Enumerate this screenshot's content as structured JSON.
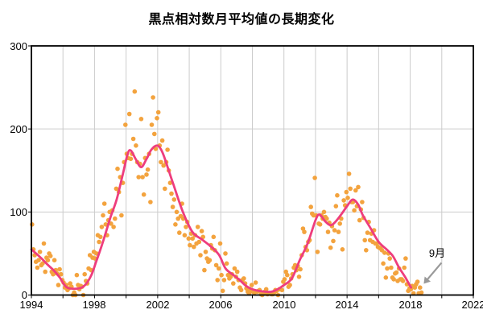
{
  "chart_data": {
    "type": "scatter",
    "title": "黒点相対数月平均値の長期変化",
    "x_axis": {
      "min": 1994,
      "max": 2022,
      "tick_labels": [
        "1994",
        "1998",
        "2002",
        "2006",
        "2010",
        "2014",
        "2018",
        "2022"
      ],
      "tick_interval_years": 4,
      "grid_interval_years": 2
    },
    "y_axis": {
      "min": 0,
      "max": 300,
      "tick_labels": [
        "0",
        "100",
        "200",
        "300"
      ],
      "grid_values": [
        100,
        200
      ]
    },
    "legend": "none",
    "grid": "on",
    "annotation": {
      "text": "9月",
      "points_to_year": 2018.708,
      "points_to_value": 3
    },
    "colors": {
      "scatter": "#F3A33E",
      "line": "#EE3D7D",
      "grid": "#CCCCCC",
      "frame": "#000000",
      "arrow": "#999999",
      "text": "#000000"
    },
    "monthly_values_by_year": {
      "1994": [
        85,
        55,
        48,
        40,
        33,
        42,
        52,
        36,
        38,
        62,
        28,
        45
      ],
      "1995": [
        42,
        50,
        47,
        28,
        25,
        42,
        30,
        26,
        12,
        31,
        25,
        18
      ],
      "1996": [
        15,
        9,
        12,
        6,
        8,
        14,
        10,
        0,
        3,
        0,
        24,
        12
      ],
      "1997": [
        7,
        11,
        10,
        0,
        25,
        17,
        14,
        32,
        48,
        30,
        45,
        52
      ],
      "1998": [
        44,
        50,
        72,
        64,
        70,
        82,
        96,
        110,
        85,
        72,
        90,
        100
      ],
      "1999": [
        86,
        102,
        82,
        92,
        128,
        152,
        124,
        142,
        96,
        135,
        160,
        205
      ],
      "2000": [
        170,
        165,
        218,
        164,
        170,
        188,
        245,
        180,
        160,
        142,
        158,
        212
      ],
      "2001": [
        142,
        121,
        165,
        145,
        151,
        170,
        112,
        205,
        238,
        194,
        176,
        213
      ],
      "2002": [
        220,
        180,
        160,
        186,
        156,
        128,
        160,
        175,
        150,
        135,
        122,
        106
      ],
      "2003": [
        115,
        85,
        100,
        92,
        75,
        95,
        110,
        92,
        72,
        82,
        88,
        68
      ],
      "2004": [
        60,
        74,
        68,
        58,
        72,
        62,
        82,
        64,
        48,
        77,
        70,
        30
      ],
      "2005": [
        52,
        44,
        40,
        42,
        60,
        56,
        70,
        54,
        36,
        18,
        32,
        62
      ],
      "2006": [
        24,
        5,
        18,
        50,
        38,
        24,
        20,
        22,
        25,
        14,
        32,
        22
      ],
      "2007": [
        28,
        18,
        9,
        6,
        18,
        20,
        14,
        8,
        4,
        2,
        6,
        12
      ],
      "2008": [
        4,
        3,
        15,
        4,
        5,
        6,
        1,
        0,
        2,
        4,
        7,
        1
      ],
      "2009": [
        2,
        2,
        1,
        1,
        3,
        6,
        5,
        0,
        7,
        7,
        6,
        16
      ],
      "2010": [
        19,
        28,
        24,
        10,
        12,
        20,
        25,
        33,
        36,
        30,
        35,
        22
      ],
      "2011": [
        31,
        48,
        80,
        76,
        58,
        54,
        64,
        66,
        106,
        98,
        96,
        141
      ],
      "2012": [
        96,
        52,
        86,
        85,
        96,
        92,
        100,
        94,
        92,
        76,
        87,
        57
      ],
      "2013": [
        83,
        65,
        78,
        107,
        120,
        76,
        86,
        92,
        55,
        114,
        108,
        124
      ],
      "2014": [
        117,
        146,
        128,
        112,
        112,
        102,
        126,
        107,
        130,
        90,
        103,
        112
      ],
      "2015": [
        93,
        66,
        54,
        75,
        88,
        66,
        74,
        64,
        78,
        62,
        62,
        58
      ],
      "2016": [
        57,
        56,
        54,
        38,
        51,
        21,
        32,
        50,
        44,
        33,
        21,
        19
      ],
      "2017": [
        26,
        27,
        17,
        32,
        19,
        19,
        17,
        33,
        44,
        13,
        5,
        8
      ],
      "2018": [
        7,
        11,
        2,
        9,
        13,
        16,
        2,
        9,
        3
      ]
    },
    "smoothed_line": [
      [
        1994.0,
        55
      ],
      [
        1994.3,
        50
      ],
      [
        1994.7,
        43
      ],
      [
        1995.0,
        37
      ],
      [
        1995.4,
        30
      ],
      [
        1995.8,
        21
      ],
      [
        1996.1,
        12
      ],
      [
        1996.4,
        8
      ],
      [
        1997.0,
        8
      ],
      [
        1997.4,
        12
      ],
      [
        1997.8,
        24
      ],
      [
        1998.1,
        40
      ],
      [
        1998.5,
        62
      ],
      [
        1999.0,
        93
      ],
      [
        1999.4,
        115
      ],
      [
        1999.8,
        146
      ],
      [
        2000.1,
        170
      ],
      [
        2000.3,
        174
      ],
      [
        2000.6,
        164
      ],
      [
        2000.95,
        154
      ],
      [
        2001.3,
        164
      ],
      [
        2001.6,
        175
      ],
      [
        2001.97,
        180
      ],
      [
        2002.3,
        172
      ],
      [
        2002.7,
        150
      ],
      [
        2003.0,
        133
      ],
      [
        2003.6,
        100
      ],
      [
        2004.2,
        76
      ],
      [
        2004.8,
        67
      ],
      [
        2005.4,
        58
      ],
      [
        2005.9,
        48
      ],
      [
        2006.3,
        32
      ],
      [
        2006.8,
        24
      ],
      [
        2007.2,
        18
      ],
      [
        2007.6,
        11
      ],
      [
        2008.0,
        7
      ],
      [
        2008.6,
        4.5
      ],
      [
        2009.2,
        4
      ],
      [
        2009.6,
        7
      ],
      [
        2010.0,
        12
      ],
      [
        2010.5,
        20
      ],
      [
        2011.0,
        42
      ],
      [
        2011.5,
        62
      ],
      [
        2012.0,
        90
      ],
      [
        2012.25,
        97
      ],
      [
        2012.6,
        89
      ],
      [
        2012.95,
        84
      ],
      [
        2013.3,
        89
      ],
      [
        2013.7,
        99
      ],
      [
        2014.0,
        107
      ],
      [
        2014.35,
        115
      ],
      [
        2014.7,
        109
      ],
      [
        2015.0,
        96
      ],
      [
        2015.5,
        80
      ],
      [
        2016.0,
        64
      ],
      [
        2016.5,
        55
      ],
      [
        2016.9,
        47
      ],
      [
        2017.3,
        33
      ],
      [
        2017.7,
        21
      ],
      [
        2018.05,
        9
      ]
    ]
  }
}
